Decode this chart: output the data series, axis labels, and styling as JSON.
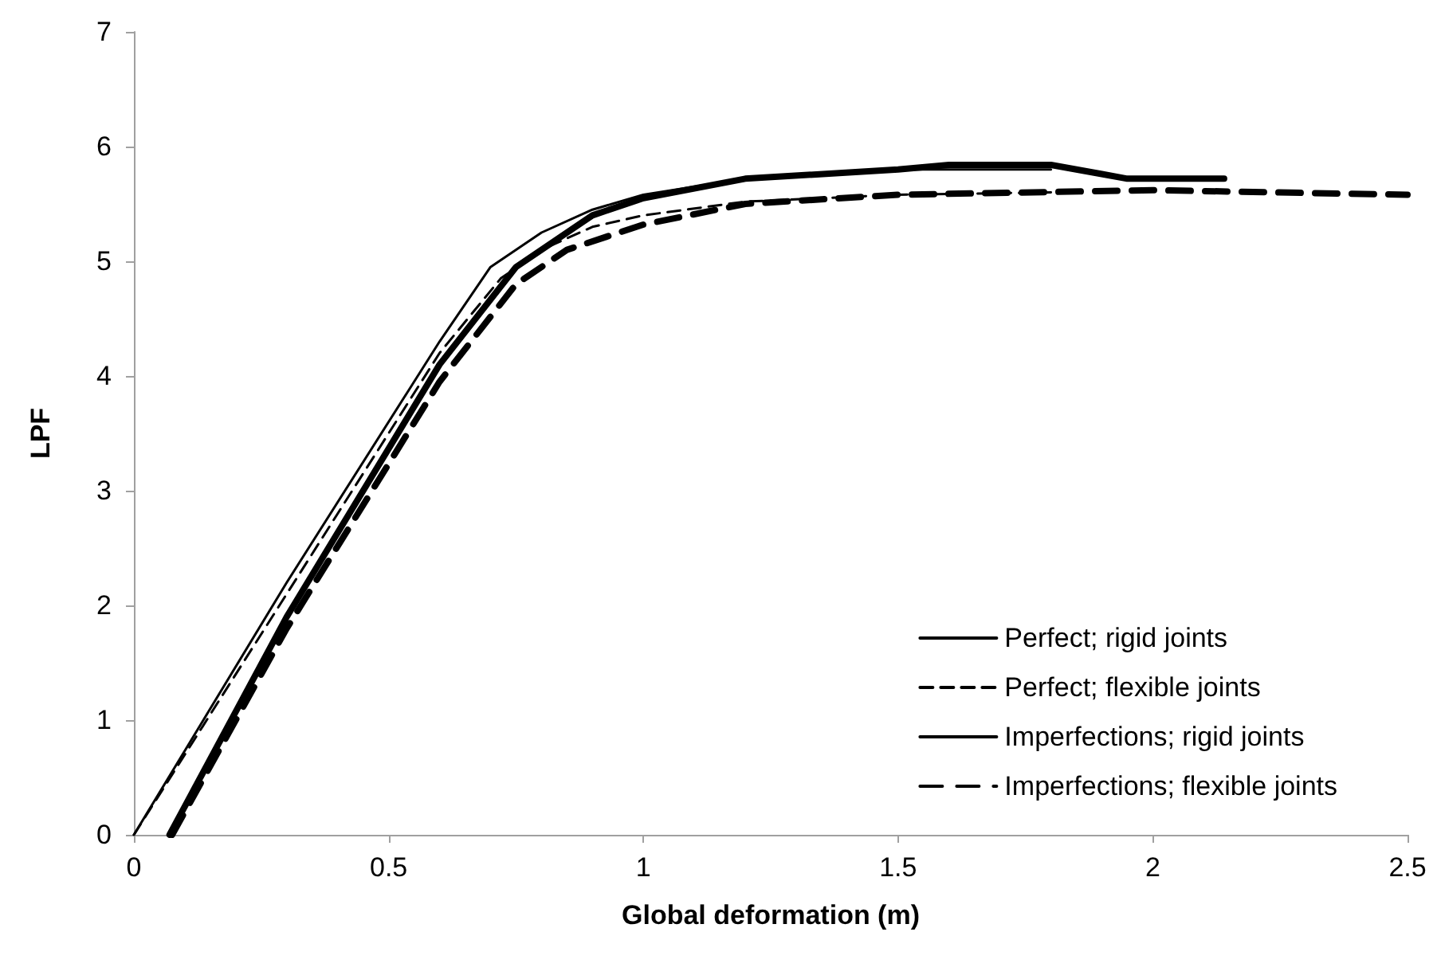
{
  "chart_data": {
    "type": "line",
    "xlabel": "Global deformation (m)",
    "ylabel": "LPF",
    "xlim": [
      0,
      2.5
    ],
    "xticks": [
      0,
      0.5,
      1,
      1.5,
      2,
      2.5
    ],
    "ylim": [
      0,
      7
    ],
    "yticks": [
      0,
      1,
      2,
      3,
      4,
      5,
      6,
      7
    ],
    "grid": false,
    "legend": "bottom right",
    "marker": "none",
    "series": [
      {
        "name": "Perfect; rigid joints",
        "color": "#000000",
        "line_style": "solid",
        "x": [
          0,
          0.3,
          0.6,
          0.7,
          0.8,
          0.9,
          1.0,
          1.2,
          1.5,
          1.8
        ],
        "values": [
          0,
          2.2,
          4.3,
          4.95,
          5.25,
          5.45,
          5.58,
          5.72,
          5.8,
          5.8
        ]
      },
      {
        "name": "Perfect; flexible joints",
        "color": "#000000",
        "line_style": "dashed",
        "x": [
          0,
          0.3,
          0.6,
          0.72,
          0.8,
          0.9,
          1.0,
          1.2,
          1.5,
          1.8
        ],
        "values": [
          0,
          2.1,
          4.2,
          4.85,
          5.1,
          5.3,
          5.4,
          5.52,
          5.58,
          5.6
        ]
      },
      {
        "name": "Imperfections; rigid joints",
        "color": "#000000",
        "line_style": "solid",
        "x": [
          0.07,
          0.3,
          0.6,
          0.75,
          0.9,
          1.0,
          1.2,
          1.5,
          1.6,
          1.8,
          1.9,
          1.95,
          2.14
        ],
        "values": [
          0,
          1.9,
          4.1,
          4.95,
          5.4,
          5.55,
          5.72,
          5.8,
          5.84,
          5.84,
          5.76,
          5.72,
          5.72
        ]
      },
      {
        "name": "Imperfections; flexible joints",
        "color": "#000000",
        "line_style": "dashed",
        "x": [
          0.075,
          0.3,
          0.6,
          0.75,
          0.85,
          1.0,
          1.2,
          1.5,
          2.0,
          2.5
        ],
        "values": [
          0,
          1.8,
          3.95,
          4.8,
          5.1,
          5.32,
          5.5,
          5.58,
          5.62,
          5.58
        ]
      }
    ]
  }
}
